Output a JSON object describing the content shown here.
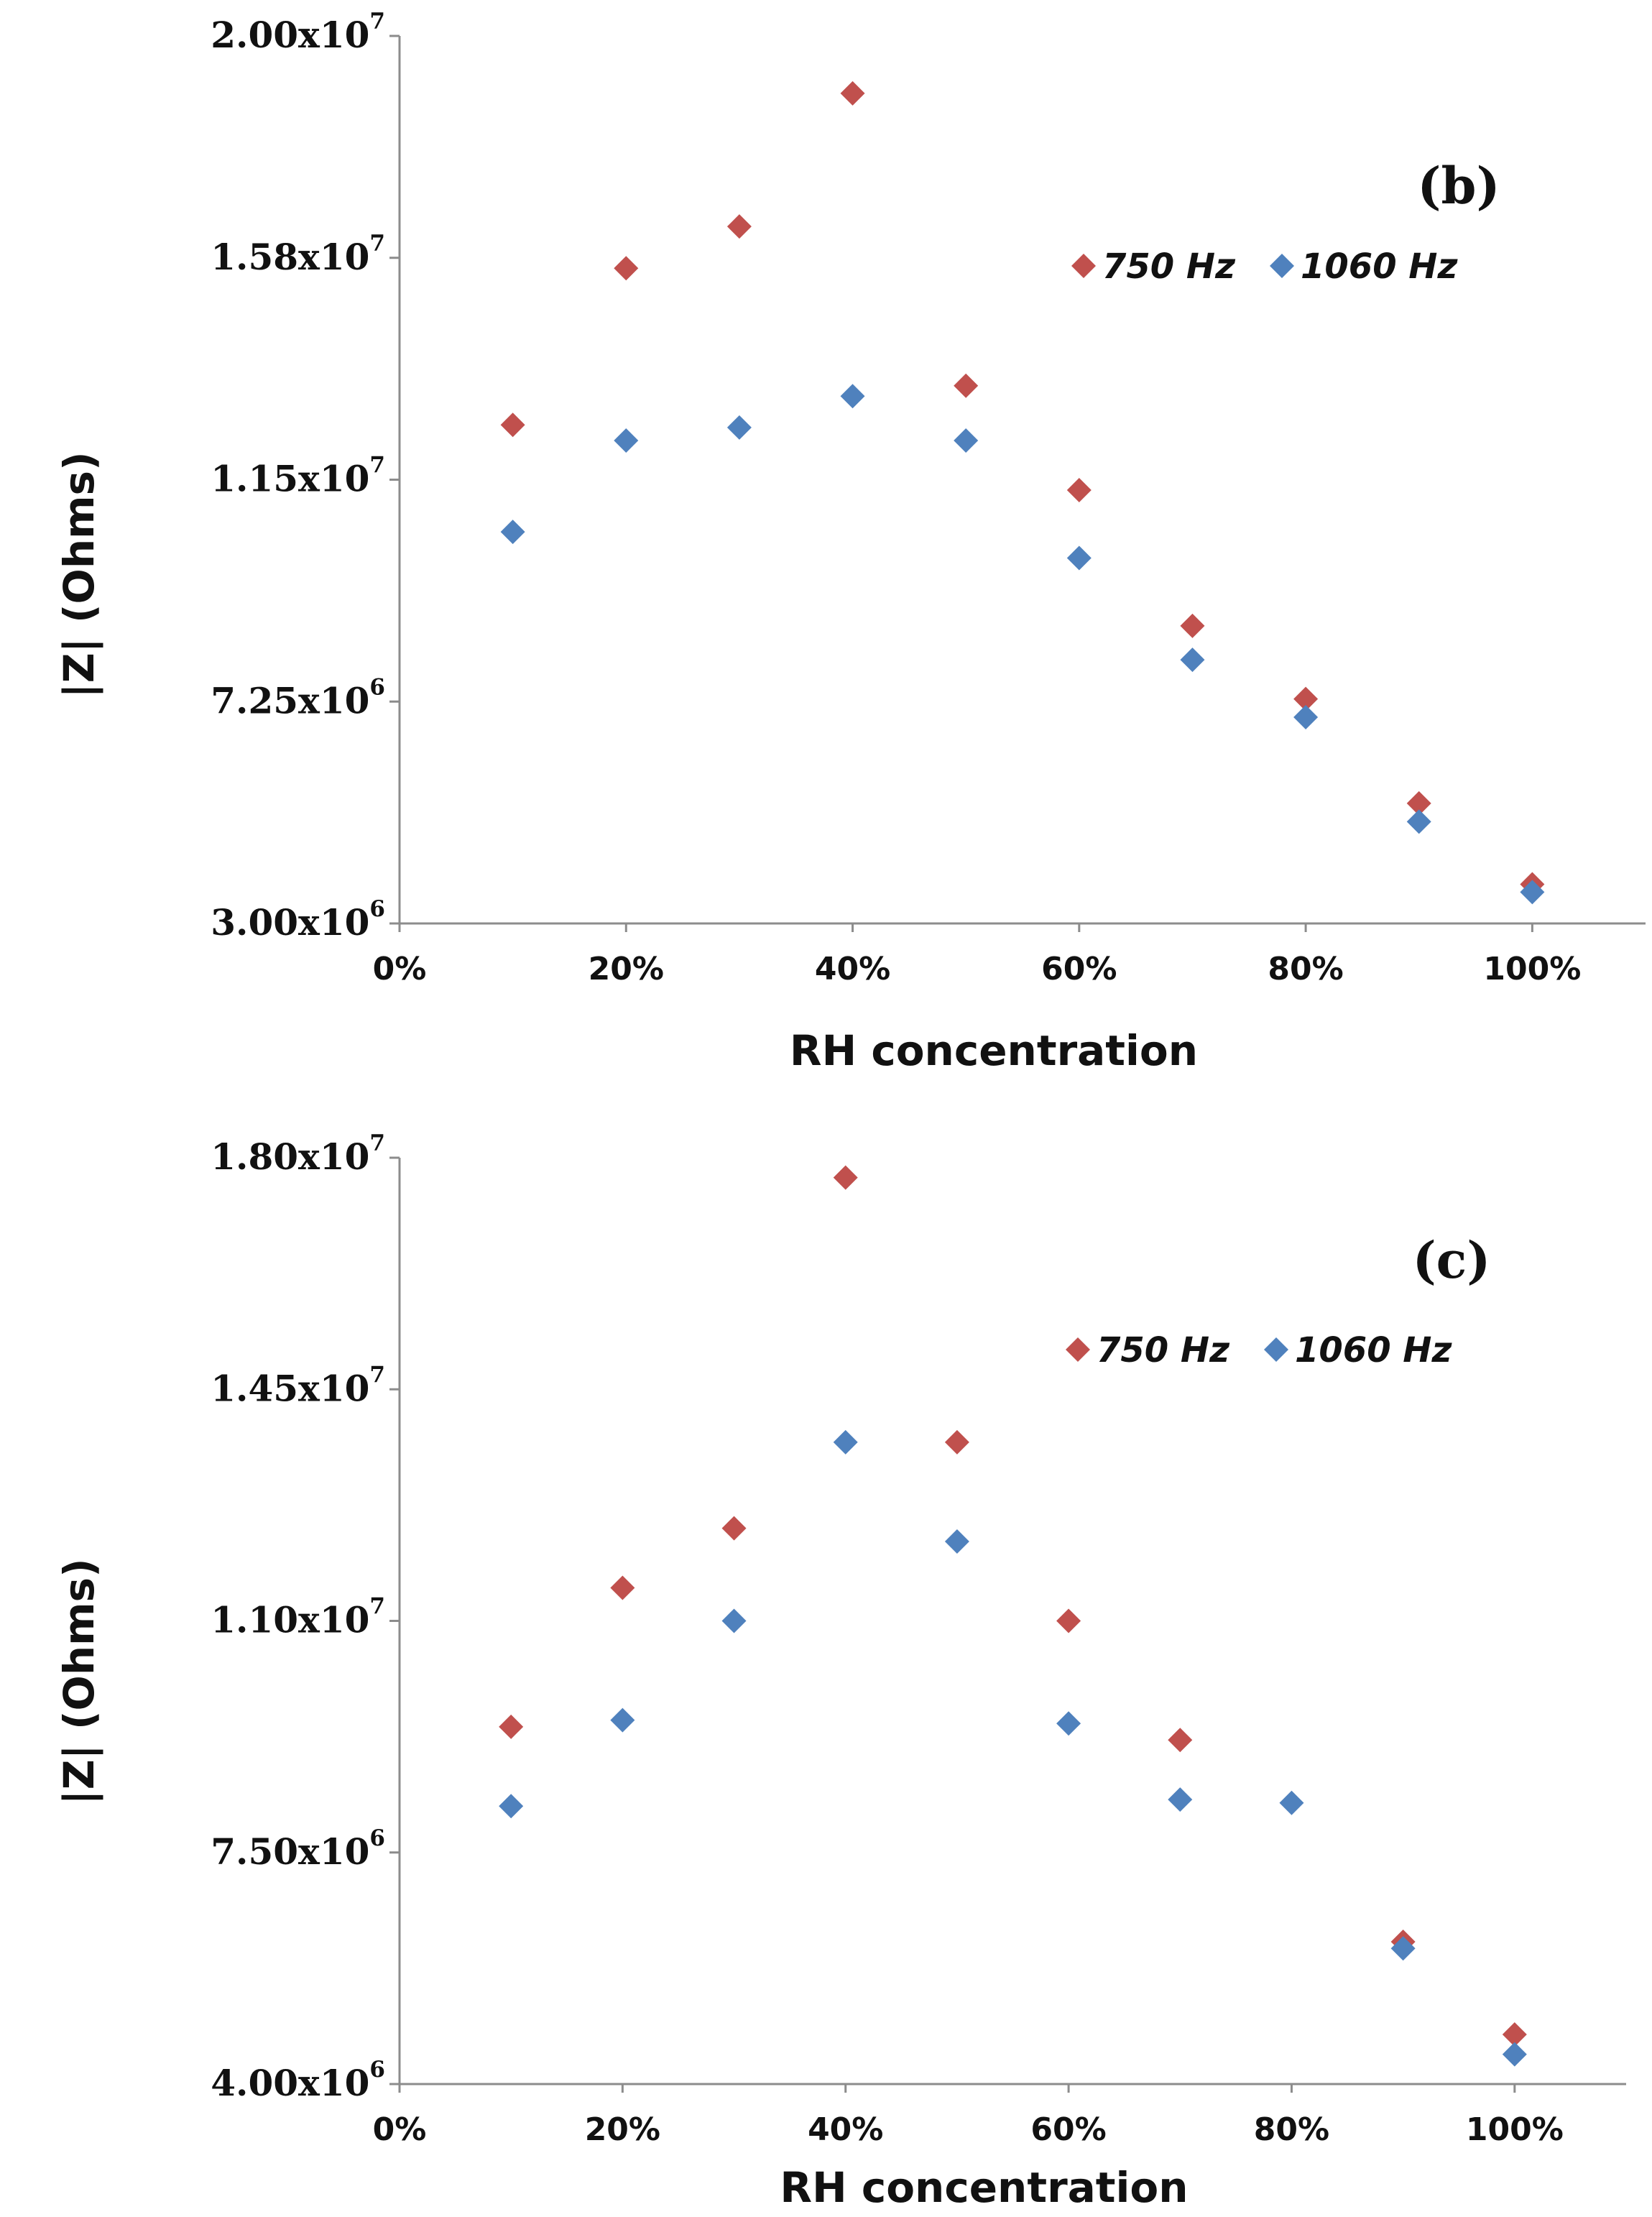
{
  "chart_data": [
    {
      "type": "scatter",
      "panel_label": "(b)",
      "xlabel": "RH concentration",
      "ylabel": "|Z| (Ohms)",
      "x_ticks": [
        "0%",
        "20%",
        "40%",
        "60%",
        "80%",
        "100%"
      ],
      "xlim": [
        0,
        110
      ],
      "y_ticks": [
        {
          "mantissa": "3.00x10",
          "exponent": "6",
          "value": 3000000
        },
        {
          "mantissa": "7.25x10",
          "exponent": "6",
          "value": 7250000
        },
        {
          "mantissa": "1.15x10",
          "exponent": "7",
          "value": 11500000
        },
        {
          "mantissa": "1.58x10",
          "exponent": "7",
          "value": 15750000
        },
        {
          "mantissa": "2.00x10",
          "exponent": "7",
          "value": 20000000
        }
      ],
      "ylim": [
        3000000,
        20000000
      ],
      "legend_position": "top-right",
      "series": [
        {
          "name": "750 Hz",
          "color": "#c0504d",
          "points": [
            {
              "x": 10,
              "y": 12550000
            },
            {
              "x": 20,
              "y": 15550000
            },
            {
              "x": 30,
              "y": 16350000
            },
            {
              "x": 40,
              "y": 18900000
            },
            {
              "x": 50,
              "y": 13300000
            },
            {
              "x": 60,
              "y": 11300000
            },
            {
              "x": 70,
              "y": 8700000
            },
            {
              "x": 80,
              "y": 7300000
            },
            {
              "x": 90,
              "y": 5300000
            },
            {
              "x": 100,
              "y": 3750000
            }
          ]
        },
        {
          "name": "1060 Hz",
          "color": "#4f81bd",
          "points": [
            {
              "x": 10,
              "y": 10500000
            },
            {
              "x": 20,
              "y": 12250000
            },
            {
              "x": 30,
              "y": 12500000
            },
            {
              "x": 40,
              "y": 13100000
            },
            {
              "x": 50,
              "y": 12250000
            },
            {
              "x": 60,
              "y": 10000000
            },
            {
              "x": 70,
              "y": 8050000
            },
            {
              "x": 80,
              "y": 6950000
            },
            {
              "x": 90,
              "y": 4950000
            },
            {
              "x": 100,
              "y": 3600000
            }
          ]
        }
      ]
    },
    {
      "type": "scatter",
      "panel_label": "(c)",
      "xlabel": "RH concentration",
      "ylabel": "|Z| (Ohms)",
      "x_ticks": [
        "0%",
        "20%",
        "40%",
        "60%",
        "80%",
        "100%"
      ],
      "xlim": [
        0,
        110
      ],
      "y_ticks": [
        {
          "mantissa": "4.00x10",
          "exponent": "6",
          "value": 4000000
        },
        {
          "mantissa": "7.50x10",
          "exponent": "6",
          "value": 7500000
        },
        {
          "mantissa": "1.10x10",
          "exponent": "7",
          "value": 11000000
        },
        {
          "mantissa": "1.45x10",
          "exponent": "7",
          "value": 14500000
        },
        {
          "mantissa": "1.80x10",
          "exponent": "7",
          "value": 18000000
        }
      ],
      "ylim": [
        4000000,
        18000000
      ],
      "legend_position": "top-right",
      "series": [
        {
          "name": "750 Hz",
          "color": "#c0504d",
          "points": [
            {
              "x": 10,
              "y": 9400000
            },
            {
              "x": 20,
              "y": 11500000
            },
            {
              "x": 30,
              "y": 12400000
            },
            {
              "x": 40,
              "y": 17700000
            },
            {
              "x": 50,
              "y": 13700000
            },
            {
              "x": 60,
              "y": 11000000
            },
            {
              "x": 70,
              "y": 9200000
            },
            {
              "x": 90,
              "y": 6150000
            },
            {
              "x": 100,
              "y": 4750000
            }
          ]
        },
        {
          "name": "1060 Hz",
          "color": "#4f81bd",
          "points": [
            {
              "x": 10,
              "y": 8200000
            },
            {
              "x": 20,
              "y": 9500000
            },
            {
              "x": 30,
              "y": 11000000
            },
            {
              "x": 40,
              "y": 13700000
            },
            {
              "x": 50,
              "y": 12200000
            },
            {
              "x": 60,
              "y": 9450000
            },
            {
              "x": 70,
              "y": 8300000
            },
            {
              "x": 80,
              "y": 8250000
            },
            {
              "x": 90,
              "y": 6050000
            },
            {
              "x": 100,
              "y": 4450000
            }
          ]
        }
      ]
    }
  ]
}
